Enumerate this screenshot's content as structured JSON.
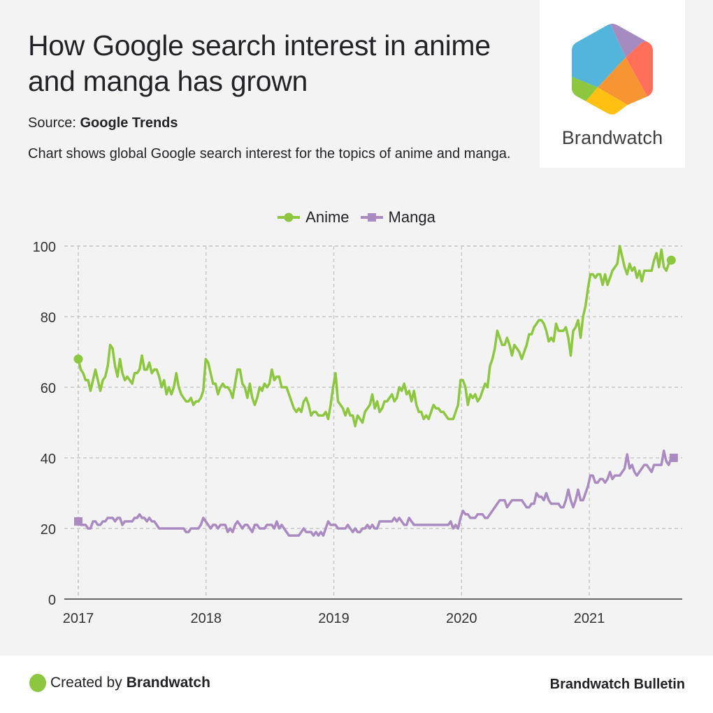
{
  "header": {
    "title": "How Google search interest in anime and manga has grown",
    "source_label": "Source: ",
    "source_name": "Google Trends",
    "description": "Chart shows global Google search interest for the topics of anime and manga."
  },
  "logo": {
    "text": "Brandwatch",
    "colors": [
      "#54b5dc",
      "#a68bc0",
      "#ff6f59",
      "#f79533",
      "#ffc011",
      "#8dc63f"
    ]
  },
  "footer": {
    "created_prefix": "Created by ",
    "created_brand": "Brandwatch",
    "publication": "Brandwatch Bulletin"
  },
  "chart_data": {
    "type": "line",
    "title": "How Google search interest in anime and manga has grown",
    "xlabel": "",
    "ylabel": "",
    "x_start_year": 2017.0,
    "x_step_years": 0.01918,
    "xlim": [
      2016.97,
      2021.72
    ],
    "ylim": [
      0,
      100
    ],
    "x_ticks": [
      "2017",
      "2018",
      "2019",
      "2020",
      "2021"
    ],
    "x_tick_values": [
      2017,
      2018,
      2019,
      2020,
      2021
    ],
    "y_ticks": [
      "0",
      "20",
      "40",
      "60",
      "80",
      "100"
    ],
    "y_tick_values": [
      0,
      20,
      40,
      60,
      80,
      100
    ],
    "grid": true,
    "legend_position": "top-center",
    "series": [
      {
        "name": "Anime",
        "color": "#8dc63f",
        "marker": "circle",
        "values": [
          68,
          65,
          64,
          62,
          62,
          59,
          62,
          65,
          62,
          59,
          62,
          63,
          66,
          72,
          71,
          66,
          63,
          68,
          64,
          62,
          63,
          62,
          61,
          64,
          64,
          65,
          69,
          65,
          65,
          67,
          64,
          65,
          65,
          63,
          60,
          62,
          58,
          60,
          58,
          60,
          64,
          60,
          58,
          57,
          56,
          56,
          57,
          55,
          56,
          56,
          57,
          59,
          68,
          67,
          64,
          61,
          61,
          58,
          60,
          61,
          60,
          60,
          59,
          57,
          61,
          65,
          65,
          61,
          60,
          57,
          61,
          57,
          55,
          57,
          60,
          59,
          61,
          60,
          61,
          65,
          62,
          63,
          63,
          60,
          60,
          60,
          58,
          56,
          54,
          53,
          54,
          53,
          56,
          57,
          55,
          52,
          53,
          53,
          52,
          52,
          52,
          53,
          51,
          55,
          60,
          64,
          56,
          55,
          54,
          52,
          54,
          52,
          52,
          49,
          52,
          51,
          50,
          53,
          54,
          55,
          58,
          54,
          56,
          53,
          54,
          56,
          56,
          57,
          58,
          56,
          57,
          60,
          59,
          61,
          58,
          59,
          56,
          59,
          55,
          53,
          53,
          51,
          52,
          51,
          53,
          55,
          54,
          54,
          53,
          53,
          52,
          51,
          51,
          51,
          53,
          55,
          62,
          62,
          60,
          55,
          58,
          57,
          58,
          56,
          57,
          59,
          61,
          60,
          66,
          68,
          71,
          76,
          74,
          72,
          72,
          74,
          72,
          69,
          72,
          71,
          70,
          68,
          70,
          72,
          75,
          75,
          77,
          78,
          79,
          79,
          78,
          76,
          73,
          74,
          73,
          78,
          76,
          76,
          76,
          77,
          74,
          69,
          76,
          77,
          79,
          74,
          80,
          83,
          88,
          92,
          92,
          91,
          92,
          92,
          89,
          92,
          89,
          91,
          93,
          94,
          95,
          100,
          97,
          94,
          92,
          95,
          93,
          94,
          91,
          93,
          90,
          93,
          93,
          93,
          93,
          96,
          98,
          94,
          99,
          94,
          93,
          95,
          96
        ]
      },
      {
        "name": "Manga",
        "color": "#a98bc1",
        "marker": "square",
        "values": [
          22,
          21,
          21,
          21,
          20,
          20,
          22,
          22,
          21,
          21,
          22,
          22,
          23,
          23,
          23,
          22,
          23,
          23,
          21,
          22,
          22,
          22,
          22,
          23,
          23,
          24,
          23,
          23,
          22,
          23,
          22,
          22,
          21,
          20,
          20,
          20,
          20,
          20,
          20,
          20,
          20,
          20,
          20,
          20,
          19,
          19,
          20,
          20,
          20,
          20,
          21,
          23,
          22,
          21,
          20,
          21,
          21,
          20,
          21,
          21,
          21,
          19,
          20,
          19,
          21,
          22,
          21,
          20,
          21,
          21,
          20,
          19,
          21,
          21,
          20,
          20,
          20,
          21,
          21,
          21,
          20,
          22,
          20,
          21,
          20,
          19,
          18,
          18,
          18,
          18,
          18,
          19,
          20,
          19,
          19,
          19,
          18,
          19,
          18,
          19,
          18,
          20,
          22,
          21,
          21,
          21,
          20,
          20,
          20,
          20,
          21,
          20,
          19,
          20,
          19,
          19,
          20,
          20,
          21,
          20,
          21,
          20,
          20,
          22,
          22,
          22,
          22,
          22,
          22,
          23,
          22,
          23,
          22,
          21,
          21,
          23,
          22,
          21,
          21,
          21,
          21,
          21,
          21,
          21,
          21,
          21,
          21,
          21,
          21,
          21,
          21,
          21,
          22,
          20,
          21,
          20,
          23,
          25,
          24,
          24,
          23,
          23,
          23,
          24,
          24,
          24,
          23,
          23,
          24,
          25,
          26,
          27,
          28,
          28,
          28,
          26,
          27,
          28,
          28,
          28,
          28,
          28,
          27,
          26,
          26,
          27,
          27,
          30,
          29,
          29,
          28,
          30,
          28,
          27,
          27,
          27,
          27,
          26,
          26,
          28,
          31,
          28,
          26,
          28,
          31,
          28,
          28,
          30,
          32,
          35,
          35,
          33,
          33,
          34,
          34,
          33,
          34,
          36,
          34,
          35,
          35,
          35,
          36,
          37,
          41,
          37,
          38,
          36,
          35,
          36,
          37,
          38,
          38,
          37,
          36,
          38,
          38,
          38,
          38,
          42,
          39,
          38,
          40,
          40
        ]
      }
    ]
  }
}
